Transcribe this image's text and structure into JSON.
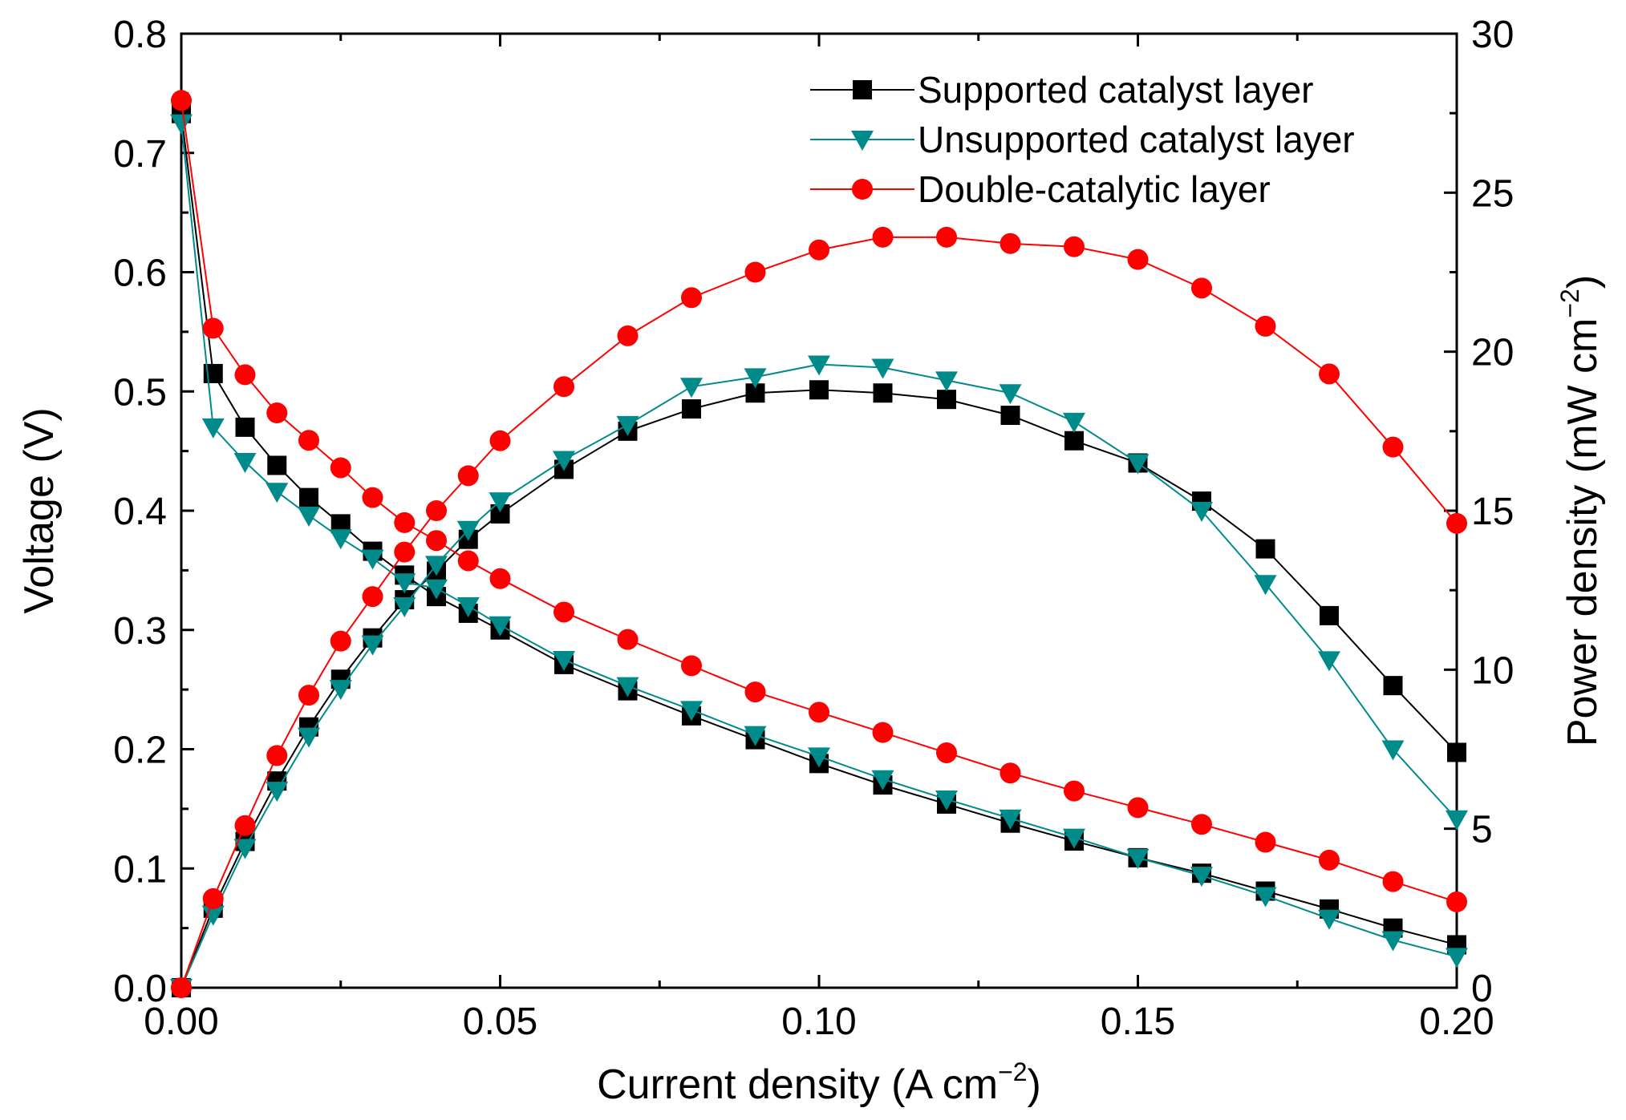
{
  "chart_data": {
    "type": "line",
    "xlabel": {
      "main": "Current density (A cm",
      "sup": "−2",
      "tail": ")"
    },
    "ylabel_left": "Voltage (V)",
    "ylabel_right": {
      "main": "Power density (mW cm",
      "sup": "−2",
      "tail": ")"
    },
    "xlim": [
      0.0,
      0.2
    ],
    "ylim_left": [
      0.0,
      0.8
    ],
    "ylim_right": [
      0,
      30
    ],
    "x_ticks": [
      "0.00",
      "0.05",
      "0.10",
      "0.15",
      "0.20"
    ],
    "y_left_ticks": [
      "0.0",
      "0.1",
      "0.2",
      "0.3",
      "0.4",
      "0.5",
      "0.6",
      "0.7",
      "0.8"
    ],
    "y_right_ticks": [
      "0",
      "5",
      "10",
      "15",
      "20",
      "25",
      "30"
    ],
    "legend_position": "top-right",
    "x": [
      0.0,
      0.005,
      0.01,
      0.015,
      0.02,
      0.025,
      0.03,
      0.035,
      0.04,
      0.045,
      0.05,
      0.06,
      0.07,
      0.08,
      0.09,
      0.1,
      0.11,
      0.12,
      0.13,
      0.14,
      0.15,
      0.16,
      0.17,
      0.18,
      0.19,
      0.2
    ],
    "series": [
      {
        "name": "Supported catalyst layer",
        "color": "#000000",
        "marker": "square",
        "voltage": [
          0.733,
          0.515,
          0.47,
          0.438,
          0.411,
          0.389,
          0.366,
          0.346,
          0.328,
          0.314,
          0.3,
          0.271,
          0.249,
          0.228,
          0.208,
          0.188,
          0.17,
          0.154,
          0.138,
          0.123,
          0.109,
          0.096,
          0.081,
          0.066,
          0.05,
          0.036
        ],
        "power": [
          0,
          2.5,
          4.6,
          6.5,
          8.2,
          9.7,
          11.0,
          12.2,
          13.1,
          14.1,
          14.9,
          16.3,
          17.5,
          18.2,
          18.7,
          18.8,
          18.7,
          18.5,
          18.0,
          17.2,
          16.5,
          15.3,
          13.8,
          11.7,
          9.5,
          7.4
        ],
        "labels": {
          "voltage": "Supported catalyst layer (Voltage)",
          "power": "Supported catalyst layer (Power density)"
        }
      },
      {
        "name": "Unsupported catalyst layer",
        "color": "#008b8b",
        "marker": "triangle-down",
        "voltage": [
          0.725,
          0.47,
          0.441,
          0.416,
          0.396,
          0.377,
          0.36,
          0.34,
          0.335,
          0.32,
          0.304,
          0.275,
          0.253,
          0.233,
          0.212,
          0.194,
          0.175,
          0.158,
          0.142,
          0.126,
          0.109,
          0.094,
          0.077,
          0.058,
          0.04,
          0.026
        ],
        "power": [
          0,
          2.3,
          4.4,
          6.2,
          7.9,
          9.4,
          10.8,
          12.0,
          13.3,
          14.4,
          15.3,
          16.6,
          17.7,
          18.9,
          19.2,
          19.6,
          19.5,
          19.1,
          18.7,
          17.8,
          16.5,
          15.0,
          12.7,
          10.3,
          7.5,
          5.3
        ],
        "labels": {
          "voltage": "Unsupported catalyst layer (Voltage)",
          "power": "Unsupported catalyst layer (Power density)"
        }
      },
      {
        "name": "Double-catalytic layer",
        "color": "#ff0000",
        "marker": "circle",
        "voltage": [
          0.744,
          0.553,
          0.514,
          0.482,
          0.459,
          0.436,
          0.411,
          0.39,
          0.375,
          0.358,
          0.343,
          0.315,
          0.292,
          0.27,
          0.248,
          0.231,
          0.214,
          0.197,
          0.18,
          0.165,
          0.151,
          0.137,
          0.122,
          0.107,
          0.089,
          0.072
        ],
        "power": [
          0,
          2.8,
          5.1,
          7.3,
          9.2,
          10.9,
          12.3,
          13.7,
          15.0,
          16.1,
          17.2,
          18.9,
          20.5,
          21.7,
          22.5,
          23.2,
          23.6,
          23.6,
          23.4,
          23.3,
          22.9,
          22.0,
          20.8,
          19.3,
          17.0,
          14.6
        ]
      }
    ]
  }
}
